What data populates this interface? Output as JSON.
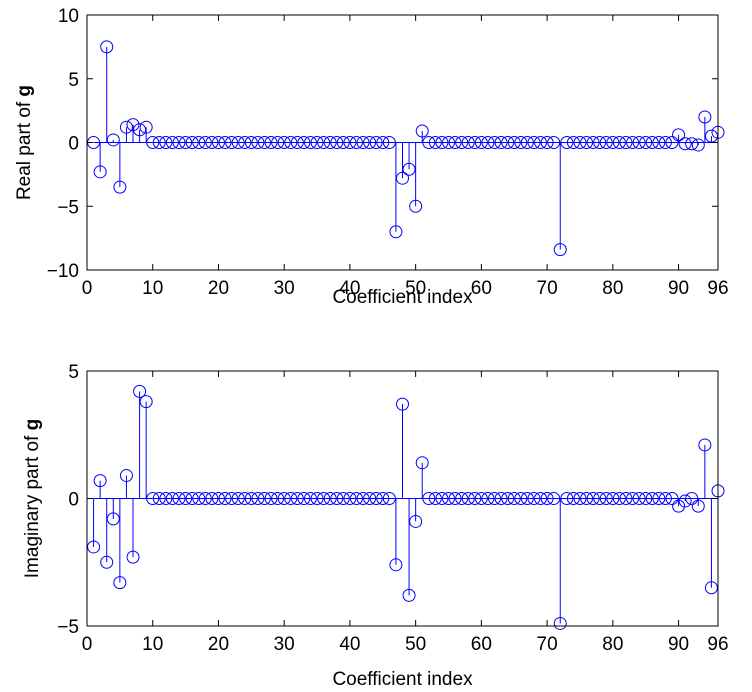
{
  "chart_data": [
    {
      "type": "stem",
      "xlabel": "Coefficient index",
      "ylabel": "Real part of ",
      "ylabel_bold": "g",
      "xlim": [
        0,
        96
      ],
      "ylim": [
        -10,
        10
      ],
      "xticks": [
        0,
        10,
        20,
        30,
        40,
        50,
        60,
        70,
        80,
        90,
        96
      ],
      "yticks": [
        -10,
        -5,
        0,
        5,
        10
      ],
      "ytick_labels": [
        "−10",
        "−5",
        "0",
        "5",
        "10"
      ],
      "grid": false,
      "color": "#0000ff",
      "x": [
        1,
        2,
        3,
        4,
        5,
        6,
        7,
        8,
        9,
        10,
        11,
        12,
        13,
        14,
        15,
        16,
        17,
        18,
        19,
        20,
        21,
        22,
        23,
        24,
        25,
        26,
        27,
        28,
        29,
        30,
        31,
        32,
        33,
        34,
        35,
        36,
        37,
        38,
        39,
        40,
        41,
        42,
        43,
        44,
        45,
        46,
        47,
        48,
        49,
        50,
        51,
        52,
        53,
        54,
        55,
        56,
        57,
        58,
        59,
        60,
        61,
        62,
        63,
        64,
        65,
        66,
        67,
        68,
        69,
        70,
        71,
        72,
        73,
        74,
        75,
        76,
        77,
        78,
        79,
        80,
        81,
        82,
        83,
        84,
        85,
        86,
        87,
        88,
        89,
        90,
        91,
        92,
        93,
        94,
        95,
        96
      ],
      "values": [
        0.0,
        -2.3,
        7.5,
        0.2,
        -3.5,
        1.2,
        1.4,
        1.0,
        1.2,
        0,
        0,
        0,
        0,
        0,
        0,
        0,
        0,
        0,
        0,
        0,
        0,
        0,
        0,
        0,
        0,
        0,
        0,
        0,
        0,
        0,
        0,
        0,
        0,
        0,
        0,
        0,
        0,
        0,
        0,
        0,
        0,
        0,
        0,
        0,
        0,
        0,
        -7.0,
        -2.8,
        -2.1,
        -5.0,
        0.9,
        0,
        0,
        0,
        0,
        0,
        0,
        0,
        0,
        0,
        0,
        0,
        0,
        0,
        0,
        0,
        0,
        0,
        0,
        0,
        0,
        -8.4,
        0,
        0,
        0,
        0,
        0,
        0,
        0,
        0,
        0,
        0,
        0,
        0,
        0,
        0,
        0,
        0,
        0,
        0.6,
        -0.1,
        -0.1,
        -0.2,
        2.0,
        0.5,
        0.8
      ]
    },
    {
      "type": "stem",
      "xlabel": "Coefficient index",
      "ylabel": "Imaginary part of ",
      "ylabel_bold": "g",
      "xlim": [
        0,
        96
      ],
      "ylim": [
        -5,
        5
      ],
      "xticks": [
        0,
        10,
        20,
        30,
        40,
        50,
        60,
        70,
        80,
        90,
        96
      ],
      "yticks": [
        -5,
        0,
        5
      ],
      "ytick_labels": [
        "−5",
        "0",
        "5"
      ],
      "grid": false,
      "color": "#0000ff",
      "x": [
        1,
        2,
        3,
        4,
        5,
        6,
        7,
        8,
        9,
        10,
        11,
        12,
        13,
        14,
        15,
        16,
        17,
        18,
        19,
        20,
        21,
        22,
        23,
        24,
        25,
        26,
        27,
        28,
        29,
        30,
        31,
        32,
        33,
        34,
        35,
        36,
        37,
        38,
        39,
        40,
        41,
        42,
        43,
        44,
        45,
        46,
        47,
        48,
        49,
        50,
        51,
        52,
        53,
        54,
        55,
        56,
        57,
        58,
        59,
        60,
        61,
        62,
        63,
        64,
        65,
        66,
        67,
        68,
        69,
        70,
        71,
        72,
        73,
        74,
        75,
        76,
        77,
        78,
        79,
        80,
        81,
        82,
        83,
        84,
        85,
        86,
        87,
        88,
        89,
        90,
        91,
        92,
        93,
        94,
        95,
        96
      ],
      "values": [
        -1.9,
        0.7,
        -2.5,
        -0.8,
        -3.3,
        0.9,
        -2.3,
        4.2,
        3.8,
        0,
        0,
        0,
        0,
        0,
        0,
        0,
        0,
        0,
        0,
        0,
        0,
        0,
        0,
        0,
        0,
        0,
        0,
        0,
        0,
        0,
        0,
        0,
        0,
        0,
        0,
        0,
        0,
        0,
        0,
        0,
        0,
        0,
        0,
        0,
        0,
        0,
        -2.6,
        3.7,
        -3.8,
        -0.9,
        1.4,
        0,
        0,
        0,
        0,
        0,
        0,
        0,
        0,
        0,
        0,
        0,
        0,
        0,
        0,
        0,
        0,
        0,
        0,
        0,
        0,
        -4.9,
        0,
        0,
        0,
        0,
        0,
        0,
        0,
        0,
        0,
        0,
        0,
        0,
        0,
        0,
        0,
        0,
        0,
        -0.3,
        -0.1,
        0.0,
        -0.3,
        2.1,
        -3.5,
        0.3
      ]
    }
  ]
}
